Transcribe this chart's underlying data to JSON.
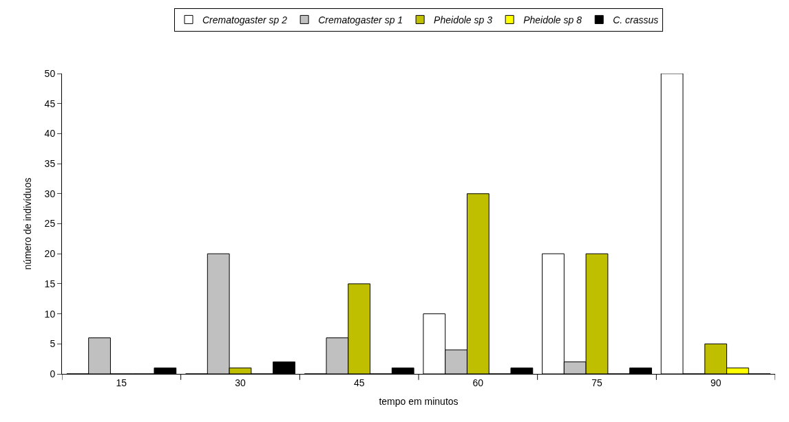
{
  "chart_data": {
    "type": "bar",
    "xlabel": "tempo em minutos",
    "ylabel": "número de indivíduos",
    "categories": [
      "15",
      "30",
      "45",
      "60",
      "75",
      "90"
    ],
    "series": [
      {
        "name": "Crematogaster sp 2",
        "color": "#ffffff",
        "values": [
          0,
          0,
          0,
          10,
          20,
          50
        ]
      },
      {
        "name": "Crematogaster sp 1",
        "color": "#c0c0c0",
        "values": [
          6,
          20,
          6,
          4,
          2,
          0
        ]
      },
      {
        "name": "Pheidole sp 3",
        "color": "#bfbf00",
        "values": [
          0,
          1,
          15,
          30,
          20,
          5
        ]
      },
      {
        "name": "Pheidole sp 8",
        "color": "#ffff00",
        "values": [
          0,
          0,
          0,
          0,
          0,
          1
        ]
      },
      {
        "name": "C. crassus",
        "color": "#000000",
        "values": [
          1,
          2,
          1,
          1,
          1,
          0
        ]
      }
    ],
    "ylim": [
      0,
      50
    ],
    "yticks": [
      0,
      5,
      10,
      15,
      20,
      25,
      30,
      35,
      40,
      45,
      50
    ],
    "grid": false,
    "legend": "top"
  }
}
